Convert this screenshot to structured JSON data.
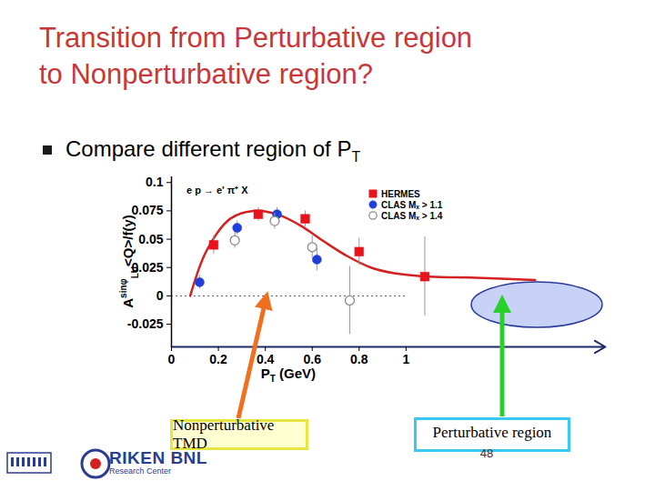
{
  "slide": {
    "title": [
      "Transition from Perturbative region",
      "to Nonperturbative region?"
    ],
    "bullet": {
      "text": "Compare different region of P",
      "sub": "T"
    },
    "annotations": {
      "left_box": "Nonperturbative TMD",
      "right_box": "Perturbative region"
    },
    "page_number": "48",
    "logo": {
      "name": "RIKEN BNL",
      "subtitle": "Research Center"
    }
  },
  "chart_data": {
    "type": "scatter",
    "subtitle": "e p → e' π⁺ X",
    "x_label": {
      "main": "P",
      "sub": "T",
      "rest": " (GeV)"
    },
    "y_label": {
      "main": "A",
      "sup": "sinφ",
      "sub": "LU",
      "rest": "<Q>/f(y)"
    },
    "xlim": [
      0,
      1.85
    ],
    "ylim": [
      -0.045,
      0.105
    ],
    "xticks": [
      0,
      0.2,
      0.4,
      0.6,
      0.8,
      1
    ],
    "yticks": [
      -0.025,
      0,
      0.025,
      0.05,
      0.075,
      0.1
    ],
    "hline": 0,
    "legend": "top-right",
    "series": [
      {
        "name": "HERMES",
        "color": "#e8141b",
        "marker": "square",
        "x": [
          0.18,
          0.37,
          0.57,
          0.8,
          1.08
        ],
        "values": [
          0.045,
          0.072,
          0.068,
          0.039,
          0.017
        ],
        "error": [
          0.008,
          0.006,
          0.007,
          0.012,
          0.035
        ]
      },
      {
        "name": "CLAS Mₓ > 1.1",
        "color": "#1f3fd8",
        "marker": "circle",
        "x": [
          0.12,
          0.28,
          0.45,
          0.62
        ],
        "values": [
          0.012,
          0.06,
          0.072,
          0.032
        ],
        "error": [
          0.006,
          0.006,
          0.006,
          0.01
        ]
      },
      {
        "name": "CLAS Mₓ > 1.4",
        "color": "#8a8a8a",
        "marker": "open-circle",
        "x": [
          0.27,
          0.44,
          0.6,
          0.76
        ],
        "values": [
          0.049,
          0.066,
          0.043,
          -0.004
        ],
        "error": [
          0.007,
          0.007,
          0.01,
          0.03
        ]
      }
    ],
    "curve": {
      "color": "#d42020",
      "x": [
        0.08,
        0.15,
        0.25,
        0.35,
        0.45,
        0.55,
        0.65,
        0.75,
        0.85,
        0.95,
        1.1,
        1.3,
        1.55
      ],
      "values": [
        0.0,
        0.04,
        0.068,
        0.075,
        0.072,
        0.062,
        0.048,
        0.035,
        0.025,
        0.02,
        0.017,
        0.016,
        0.014
      ]
    }
  }
}
